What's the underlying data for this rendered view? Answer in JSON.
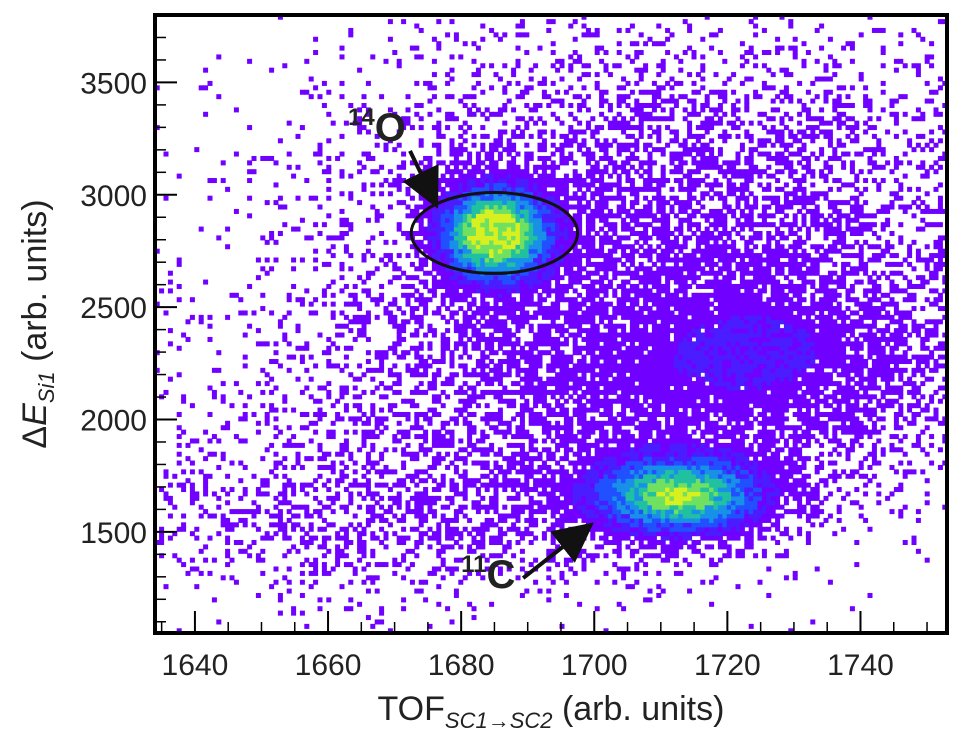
{
  "chart_data": {
    "type": "heatmap",
    "title": "",
    "xlabel": {
      "main": "TOF",
      "sub": "SC1→SC2",
      "suffix": " (arb. units)"
    },
    "ylabel": {
      "prefix": "Δ",
      "main": "E",
      "sub": "Si1",
      "suffix": " (arb. units)"
    },
    "xlim": [
      1634,
      1753
    ],
    "ylim": [
      1050,
      3800
    ],
    "xticks": [
      1640,
      1660,
      1680,
      1700,
      1720,
      1740
    ],
    "yticks": [
      1500,
      2000,
      2500,
      3000,
      3500
    ],
    "xtick_labels": [
      "1640",
      "1660",
      "1680",
      "1700",
      "1720",
      "1740"
    ],
    "ytick_labels": [
      "1500",
      "2000",
      "2500",
      "3000",
      "3500"
    ],
    "colormap": [
      "#7000ff",
      "#4a1cff",
      "#2050ff",
      "#1890e8",
      "#20c0a0",
      "#70e060",
      "#d8f020"
    ],
    "density_components": [
      {
        "name": "14O",
        "x": 1685,
        "y": 2830,
        "sx": 5.5,
        "sy": 140,
        "amp": 1.0
      },
      {
        "name": "11C",
        "x": 1713,
        "y": 1660,
        "sx": 9.0,
        "sy": 120,
        "amp": 0.85
      },
      {
        "name": "band-upper",
        "x": 1712,
        "y": 2950,
        "sx": 30,
        "sy": 450,
        "amp": 0.18
      },
      {
        "name": "band-middle",
        "x": 1705,
        "y": 2150,
        "sx": 30,
        "sy": 330,
        "amp": 0.2
      },
      {
        "name": "band-lower",
        "x": 1670,
        "y": 1550,
        "sx": 28,
        "sy": 200,
        "amp": 0.12
      },
      {
        "name": "right-mid",
        "x": 1730,
        "y": 2300,
        "sx": 14,
        "sy": 250,
        "amp": 0.14
      }
    ],
    "ellipse": {
      "cx": 1685,
      "cy": 2830,
      "rx": 12.5,
      "ry": 180
    },
    "annotations": [
      {
        "mass": "14",
        "symbol": "O",
        "text_x": 1663,
        "text_y": 3240,
        "arrow_to_x": 1676,
        "arrow_to_y": 2970
      },
      {
        "mass": "11",
        "symbol": "C",
        "text_x": 1680,
        "text_y": 1250,
        "arrow_to_x": 1699,
        "arrow_to_y": 1520
      }
    ]
  }
}
